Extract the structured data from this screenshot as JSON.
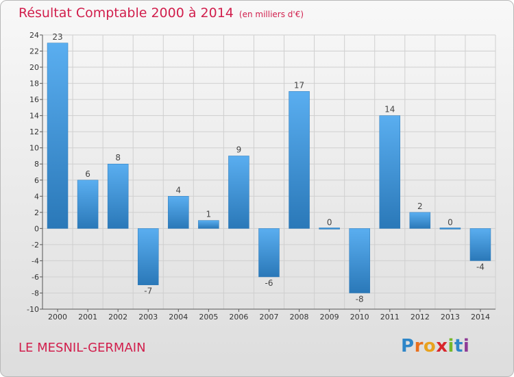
{
  "title": "Résultat Comptable 2000 à 2014",
  "unit_note": "(en milliers d'€)",
  "town": "LE MESNIL-GERMAIN",
  "logo": {
    "letters": [
      "P",
      "r",
      "o",
      "x",
      "i",
      "t",
      "i"
    ],
    "colors": [
      "#2e86c8",
      "#e86f1e",
      "#e8a21e",
      "#d8262c",
      "#76b82a",
      "#2e86c8",
      "#8e3b96"
    ]
  },
  "colors": {
    "title": "#d11e4c",
    "bar_light": "#5aaef0",
    "bar_dark": "#2a78b8"
  },
  "chart_data": {
    "type": "bar",
    "title": "Résultat Comptable 2000 à 2014",
    "xlabel": "",
    "ylabel": "",
    "categories": [
      "2000",
      "2001",
      "2002",
      "2003",
      "2004",
      "2005",
      "2006",
      "2007",
      "2008",
      "2009",
      "2010",
      "2011",
      "2012",
      "2013",
      "2014"
    ],
    "values": [
      23,
      6,
      8,
      -7,
      4,
      1,
      9,
      -6,
      17,
      0,
      -8,
      14,
      2,
      0,
      -4
    ],
    "ylim": [
      -10,
      24
    ],
    "yticks": [
      24,
      22,
      20,
      18,
      16,
      14,
      12,
      10,
      8,
      6,
      4,
      2,
      0,
      -2,
      -4,
      -6,
      -8,
      -10
    ],
    "grid": true
  }
}
